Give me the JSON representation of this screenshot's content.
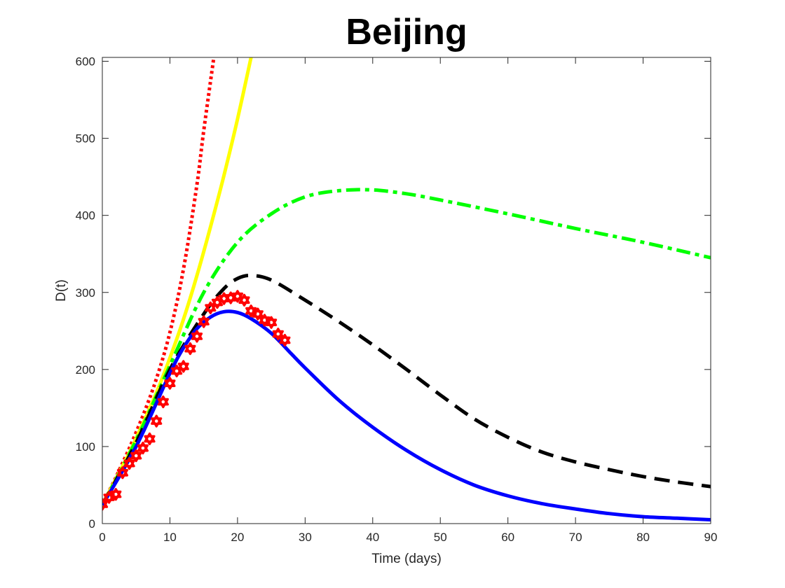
{
  "chart_data": {
    "type": "line",
    "title": "Beijing",
    "xlabel": "Time (days)",
    "ylabel": "D(t)",
    "xlim": [
      0,
      90
    ],
    "ylim": [
      0,
      605
    ],
    "xticks": [
      0,
      10,
      20,
      30,
      40,
      50,
      60,
      70,
      80,
      90
    ],
    "yticks": [
      0,
      100,
      200,
      300,
      400,
      500,
      600
    ],
    "grid": false,
    "legend": "none",
    "series": [
      {
        "style": "dotted",
        "color": "#ff0000",
        "x": [
          0,
          2,
          4,
          6,
          8,
          10,
          12,
          14,
          15,
          16.5
        ],
        "y": [
          24,
          60,
          98,
          140,
          188,
          248,
          330,
          440,
          510,
          605
        ]
      },
      {
        "style": "solid",
        "color": "#ffff00",
        "x": [
          0,
          2,
          4,
          6,
          8,
          10,
          12,
          14,
          16,
          18,
          20,
          22
        ],
        "y": [
          24,
          58,
          92,
          130,
          170,
          215,
          265,
          322,
          385,
          452,
          525,
          605
        ]
      },
      {
        "style": "dash-dot",
        "color": "#00ff00",
        "x": [
          0,
          5,
          10,
          15,
          20,
          25,
          30,
          35,
          40,
          45,
          50,
          60,
          70,
          80,
          90
        ],
        "y": [
          24,
          108,
          205,
          300,
          365,
          402,
          424,
          432,
          433,
          428,
          420,
          402,
          383,
          365,
          345
        ]
      },
      {
        "style": "dashed",
        "color": "#000000",
        "x": [
          0,
          5,
          10,
          15,
          18,
          20,
          22,
          25,
          30,
          35,
          40,
          45,
          50,
          55,
          60,
          65,
          70,
          75,
          80,
          85,
          90
        ],
        "y": [
          24,
          105,
          200,
          272,
          305,
          318,
          322,
          316,
          290,
          262,
          232,
          200,
          167,
          136,
          112,
          93,
          80,
          70,
          61,
          54,
          48
        ]
      },
      {
        "style": "solid",
        "color": "#0000ff",
        "x": [
          0,
          5,
          10,
          12,
          14,
          16,
          18,
          20,
          22,
          25,
          28,
          30,
          35,
          40,
          45,
          50,
          55,
          60,
          65,
          70,
          75,
          80,
          85,
          90
        ],
        "y": [
          24,
          100,
          195,
          228,
          253,
          268,
          275,
          274,
          266,
          247,
          220,
          202,
          160,
          125,
          95,
          70,
          50,
          36,
          26,
          19,
          13,
          9,
          7,
          5
        ]
      },
      {
        "style": "markers",
        "color": "#ff0000",
        "x": [
          0,
          1,
          2,
          3,
          4,
          5,
          6,
          7,
          8,
          9,
          10,
          11,
          12,
          13,
          14,
          15,
          16,
          17,
          18,
          19,
          20,
          21,
          22,
          23,
          24,
          25,
          26,
          27
        ],
        "y": [
          25,
          34,
          38,
          66,
          78,
          88,
          98,
          110,
          133,
          158,
          182,
          198,
          204,
          227,
          243,
          262,
          280,
          287,
          292,
          293,
          295,
          290,
          276,
          272,
          264,
          261,
          246,
          238
        ]
      }
    ]
  }
}
